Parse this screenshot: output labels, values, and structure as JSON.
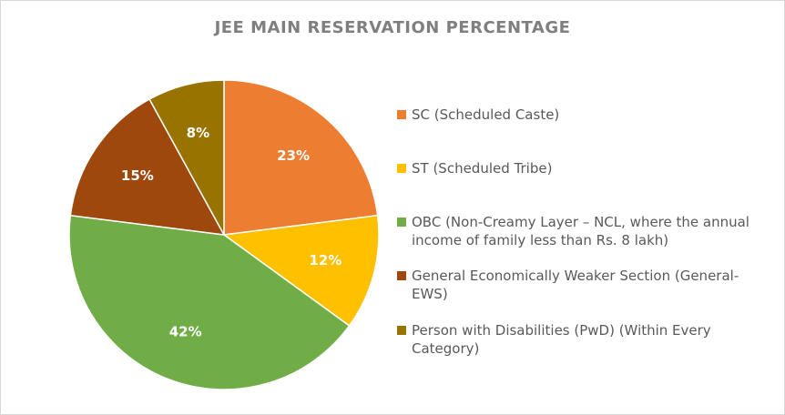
{
  "chart_data": {
    "type": "pie",
    "title": "JEE MAIN RESERVATION PERCENTAGE",
    "categories": [
      "SC (Scheduled Caste)",
      "ST (Scheduled Tribe)",
      "OBC (Non-Creamy Layer – NCL, where the annual income of family less than Rs. 8 lakh)",
      "General Economically Weaker Section (General-EWS)",
      "Person with Disabilities (PwD) (Within Every Category)"
    ],
    "values": [
      23,
      12,
      42,
      15,
      8
    ],
    "data_labels": [
      "23%",
      "12%",
      "42%",
      "15%",
      "8%"
    ],
    "colors": [
      "#ED7D31",
      "#FFC000",
      "#70AD47",
      "#9E480E",
      "#997300"
    ],
    "legend_position": "right"
  }
}
